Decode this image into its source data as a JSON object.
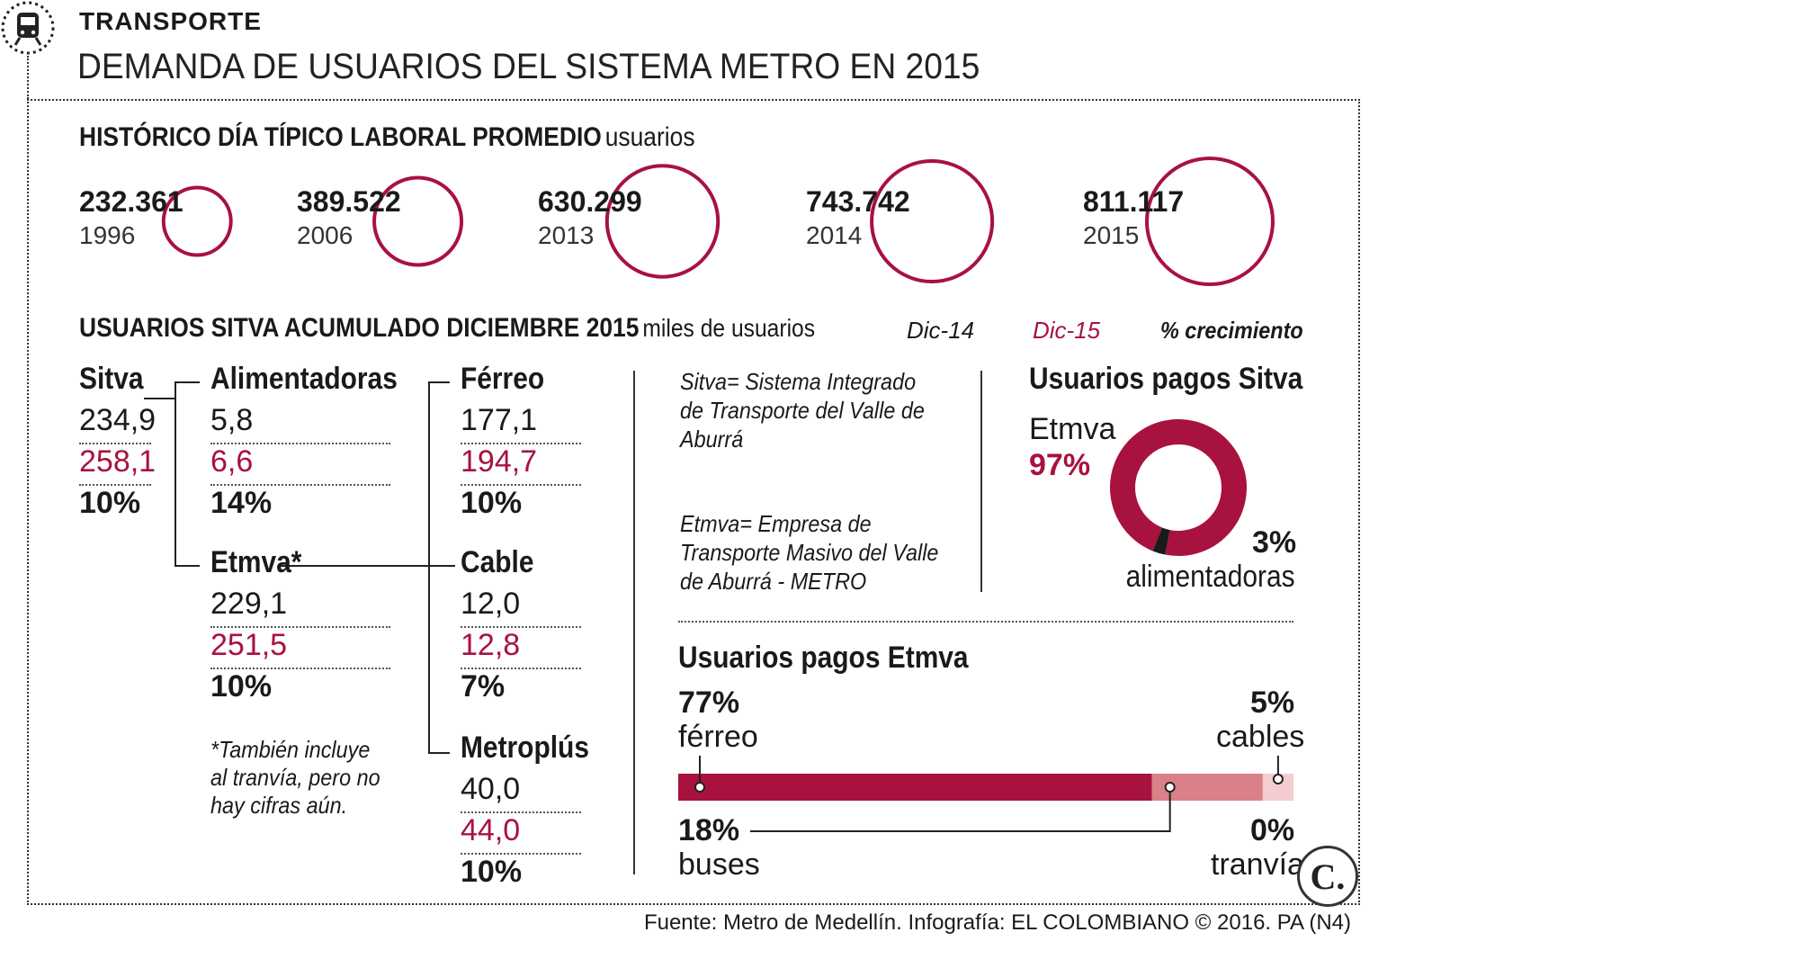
{
  "header": {
    "section": "TRANSPORTE",
    "title": "DEMANDA DE USUARIOS DEL SISTEMA METRO EN 2015"
  },
  "historico": {
    "title": "HISTÓRICO DÍA TÍPICO LABORAL PROMEDIO",
    "unit": "usuarios"
  },
  "sitva_header": {
    "title": "USUARIOS SITVA ACUMULADO DICIEMBRE 2015",
    "unit": "miles de usuarios",
    "legend_dic14": "Dic-14",
    "legend_dic15": "Dic-15",
    "legend_growth": "% crecimiento"
  },
  "tree": {
    "sitva": {
      "name": "Sitva",
      "v14": "234,9",
      "v15": "258,1",
      "g": "10%"
    },
    "alimentadoras": {
      "name": "Alimentadoras",
      "v14": "5,8",
      "v15": "6,6",
      "g": "14%"
    },
    "etmva": {
      "name": "Etmva*",
      "v14": "229,1",
      "v15": "251,5",
      "g": "10%"
    },
    "ferreo": {
      "name": "Férreo",
      "v14": "177,1",
      "v15": "194,7",
      "g": "10%"
    },
    "cable": {
      "name": "Cable",
      "v14": "12,0",
      "v15": "12,8",
      "g": "7%"
    },
    "metroplus": {
      "name": "Metroplús",
      "v14": "40,0",
      "v15": "44,0",
      "g": "10%"
    },
    "footnote": [
      "*También incluye",
      "al tranvía, pero no",
      "hay cifras aún."
    ]
  },
  "definitions": {
    "sitva": [
      "Sitva= Sistema Integrado",
      "de Transporte del Valle de",
      "Aburrá"
    ],
    "etmva": [
      "Etmva= Empresa de",
      "Transporte Masivo del Valle",
      "de Aburrá - METRO"
    ]
  },
  "pagos_sitva": {
    "title": "Usuarios pagos Sitva",
    "major_label": "Etmva",
    "major_pct": "97%",
    "minor_pct": "3%",
    "minor_label": "alimentadoras"
  },
  "pagos_etmva": {
    "title": "Usuarios pagos Etmva",
    "ferreo_pct": "77%",
    "ferreo_label": "férreo",
    "cables_pct": "5%",
    "cables_label": "cables",
    "buses_pct": "18%",
    "buses_label": "buses",
    "tranvia_pct": "0%",
    "tranvia_label": "tranvía"
  },
  "source": "Fuente: Metro de Medellín. Infografía: EL COLOMBIANO © 2016. PA (N4)",
  "logo_text": "C.",
  "colors": {
    "crimson": "#a8123e",
    "pink": "#d98088",
    "lightpink": "#f3cdd0",
    "dark": "#1a1a1a"
  },
  "chart_data": [
    {
      "type": "bubble",
      "title": "HISTÓRICO DÍA TÍPICO LABORAL PROMEDIO",
      "unit": "usuarios",
      "categories": [
        "1996",
        "2006",
        "2013",
        "2014",
        "2015"
      ],
      "values": [
        232361,
        389522,
        630299,
        743742,
        811117
      ],
      "labels": [
        "232.361",
        "389.522",
        "630.299",
        "743.742",
        "811.117"
      ]
    },
    {
      "type": "pie",
      "title": "Usuarios pagos Sitva",
      "categories": [
        "Etmva",
        "alimentadoras"
      ],
      "values": [
        97,
        3
      ]
    },
    {
      "type": "bar",
      "title": "Usuarios pagos Etmva",
      "stacked": true,
      "categories": [
        "férreo",
        "buses",
        "cables",
        "tranvía"
      ],
      "values": [
        77,
        18,
        5,
        0
      ]
    }
  ]
}
